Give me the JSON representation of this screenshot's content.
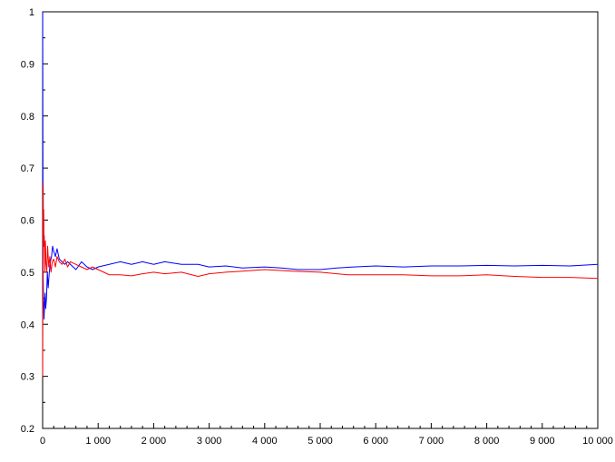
{
  "chart_data": {
    "type": "line",
    "title": "",
    "xlabel": "",
    "ylabel": "",
    "xlim": [
      0,
      10000
    ],
    "ylim": [
      0.2,
      1
    ],
    "grid": false,
    "x_ticks": [
      0,
      1000,
      2000,
      3000,
      4000,
      5000,
      6000,
      7000,
      8000,
      9000,
      10000
    ],
    "x_tick_labels": [
      "0",
      "1 000",
      "2 000",
      "3 000",
      "4 000",
      "5 000",
      "6 000",
      "7 000",
      "8 000",
      "9 000",
      "10 000"
    ],
    "y_ticks": [
      0.2,
      0.3,
      0.4,
      0.5,
      0.6,
      0.7,
      0.8,
      0.9,
      1
    ],
    "y_tick_labels": [
      "0.2",
      "0.3",
      "0.4",
      "0.5",
      "0.6",
      "0.7",
      "0.8",
      "0.9",
      "1"
    ],
    "series": [
      {
        "color": "#0000ff",
        "x": [
          1,
          8,
          15,
          25,
          35,
          45,
          55,
          70,
          85,
          100,
          120,
          140,
          160,
          180,
          200,
          230,
          260,
          300,
          350,
          400,
          450,
          500,
          600,
          700,
          800,
          900,
          1000,
          1200,
          1400,
          1600,
          1800,
          2000,
          2200,
          2500,
          2800,
          3000,
          3300,
          3600,
          4000,
          4300,
          4600,
          5000,
          5300,
          5600,
          6000,
          6500,
          7000,
          7500,
          8000,
          8500,
          9000,
          9500,
          10000
        ],
        "y": [
          1,
          0.5,
          0.45,
          0.41,
          0.44,
          0.46,
          0.43,
          0.45,
          0.5,
          0.47,
          0.5,
          0.52,
          0.53,
          0.55,
          0.54,
          0.53,
          0.545,
          0.525,
          0.52,
          0.515,
          0.52,
          0.515,
          0.505,
          0.52,
          0.51,
          0.505,
          0.51,
          0.515,
          0.52,
          0.515,
          0.52,
          0.515,
          0.52,
          0.515,
          0.515,
          0.51,
          0.512,
          0.508,
          0.51,
          0.508,
          0.505,
          0.505,
          0.508,
          0.51,
          0.512,
          0.51,
          0.512,
          0.512,
          0.513,
          0.512,
          0.513,
          0.512,
          0.515
        ]
      },
      {
        "color": "#ff0000",
        "x": [
          1,
          3,
          6,
          10,
          15,
          20,
          25,
          30,
          40,
          50,
          60,
          75,
          90,
          110,
          130,
          150,
          175,
          200,
          230,
          260,
          300,
          350,
          400,
          450,
          500,
          600,
          700,
          800,
          900,
          1000,
          1100,
          1200,
          1400,
          1600,
          1800,
          2000,
          2200,
          2500,
          2800,
          3000,
          3300,
          3600,
          4000,
          4500,
          5000,
          5500,
          6000,
          6500,
          7000,
          7500,
          8000,
          8500,
          9000,
          9500,
          10000
        ],
        "y": [
          0.3,
          0.4,
          0.6,
          0.67,
          0.58,
          0.62,
          0.55,
          0.57,
          0.5,
          0.56,
          0.52,
          0.5,
          0.55,
          0.51,
          0.53,
          0.5,
          0.52,
          0.525,
          0.51,
          0.53,
          0.52,
          0.515,
          0.525,
          0.51,
          0.52,
          0.515,
          0.51,
          0.505,
          0.51,
          0.505,
          0.5,
          0.495,
          0.495,
          0.493,
          0.497,
          0.5,
          0.497,
          0.5,
          0.492,
          0.497,
          0.5,
          0.502,
          0.505,
          0.502,
          0.5,
          0.495,
          0.495,
          0.495,
          0.493,
          0.493,
          0.495,
          0.492,
          0.49,
          0.49,
          0.488
        ]
      }
    ]
  }
}
